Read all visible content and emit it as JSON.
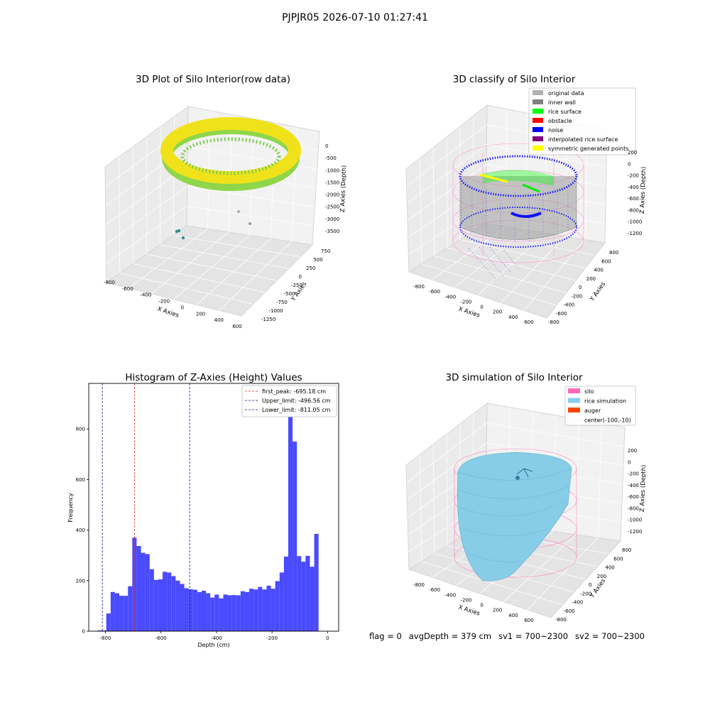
{
  "figure": {
    "title": "PJPJR05 2026-07-10 01:27:41",
    "footer": {
      "flag": "flag = 0",
      "avg_depth": "avgDepth = 379 cm",
      "sv1": "sv1 = 700~2300",
      "sv2": "sv2 = 700~2300"
    }
  },
  "chart_data": [
    {
      "type": "scatter",
      "projection": "3d",
      "title": "3D Plot of Silo Interior(row data)",
      "xlabel": "X Axies",
      "ylabel": "Y Axies",
      "zlabel": "Z Axies (Depth)",
      "x_ticks": [
        "-800",
        "-600",
        "-400",
        "-200",
        "0",
        "200",
        "400",
        "600"
      ],
      "y_ticks": [
        "750",
        "500",
        "250",
        "0",
        "-250",
        "-500",
        "-750",
        "-1000",
        "-1250"
      ],
      "z_ticks": [
        "0",
        "-500",
        "-1000",
        "-1500",
        "-2000",
        "-2500",
        "-3000",
        "-3500"
      ],
      "colormap": "viridis",
      "description_points": "ring of points near the top with a few outliers at depth"
    },
    {
      "type": "scatter",
      "projection": "3d",
      "title": "3D classify of Silo Interior",
      "xlabel": "X Axies",
      "ylabel": "Y Axies",
      "zlabel": "Z Axies (Depth)",
      "x_ticks": [
        "-800",
        "-600",
        "-400",
        "-200",
        "0",
        "200",
        "400",
        "600"
      ],
      "y_ticks": [
        "800",
        "600",
        "400",
        "200",
        "0",
        "-200",
        "-400",
        "-600",
        "-800"
      ],
      "z_ticks": [
        "200",
        "0",
        "-200",
        "-400",
        "-600",
        "-800",
        "-1000",
        "-1200"
      ],
      "legend": [
        {
          "label": "original data",
          "color": "#b0b0b0"
        },
        {
          "label": "inner wall",
          "color": "#808080"
        },
        {
          "label": "rice surface",
          "color": "#00ff00"
        },
        {
          "label": "obstacle",
          "color": "#ff0000"
        },
        {
          "label": "noise",
          "color": "#0000ff"
        },
        {
          "label": "interpolated rice surface",
          "color": "#800080"
        },
        {
          "label": "symmetric generated points",
          "color": "#ffff00"
        }
      ],
      "legend_position": "top-right"
    },
    {
      "type": "bar",
      "title": "Histogram of Z-Axies (Height) Values",
      "xlabel": "Depth (cm)",
      "ylabel": "Frequency",
      "xlim": [
        -860,
        40
      ],
      "ylim": [
        0,
        980
      ],
      "x_ticks": [
        -800,
        -600,
        -400,
        -200,
        0
      ],
      "y_ticks": [
        0,
        200,
        400,
        600,
        800
      ],
      "bin_width": 15.6,
      "bin_start": -828,
      "values": [
        3,
        3,
        70,
        155,
        150,
        140,
        140,
        178,
        370,
        337,
        310,
        305,
        245,
        203,
        205,
        235,
        232,
        218,
        200,
        187,
        170,
        166,
        164,
        155,
        160,
        150,
        133,
        145,
        130,
        145,
        142,
        143,
        142,
        158,
        155,
        168,
        165,
        175,
        165,
        180,
        168,
        198,
        232,
        295,
        940,
        750,
        297,
        275,
        298,
        255,
        385
      ],
      "bar_color": "#4a4aff",
      "lines": [
        {
          "label": "first_peak: -695.18 cm",
          "x": -695.18,
          "color": "#e03030"
        },
        {
          "label": "Upper_limit: -496.56 cm",
          "x": -496.56,
          "color": "#1010a0"
        },
        {
          "label": "Lower_limit: -811.05 cm",
          "x": -811.05,
          "color": "#1010a0"
        }
      ],
      "legend_position": "top-right"
    },
    {
      "type": "surface",
      "projection": "3d",
      "title": "3D simulation of Silo Interior",
      "xlabel": "X Axies",
      "ylabel": "Y Axies",
      "zlabel": "Z Axies (Depth)",
      "x_ticks": [
        "-800",
        "-600",
        "-400",
        "-200",
        "0",
        "200",
        "400",
        "600"
      ],
      "y_ticks": [
        "800",
        "600",
        "400",
        "200",
        "0",
        "-200",
        "-400",
        "-600",
        "-800"
      ],
      "z_ticks": [
        "200",
        "0",
        "-200",
        "-400",
        "-600",
        "-800",
        "-1000",
        "-1200"
      ],
      "legend": [
        {
          "label": "silo",
          "color": "#ff69b4"
        },
        {
          "label": "rice simulation",
          "color": "#87ceeb"
        },
        {
          "label": "auger",
          "color": "#ff4500"
        },
        {
          "label": "center(-100,-10)",
          "color": ""
        }
      ],
      "legend_position": "top-right"
    }
  ]
}
